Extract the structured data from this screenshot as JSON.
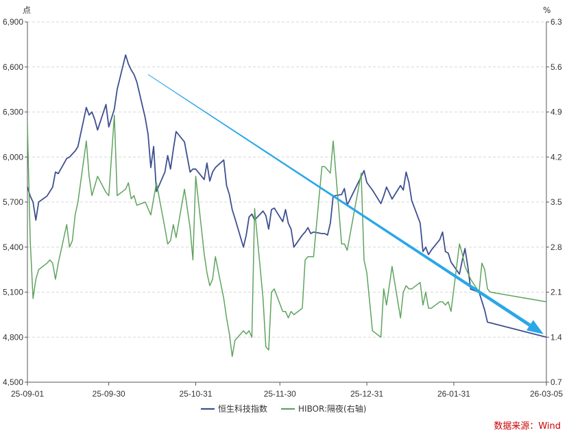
{
  "chart_data": {
    "type": "line",
    "left_unit": "点",
    "right_unit": "%",
    "x_ticks": [
      "25-09-01",
      "25-09-30",
      "25-10-31",
      "25-11-30",
      "25-12-31",
      "26-01-31",
      "26-03-05"
    ],
    "x_range": [
      "2025-09-01",
      "2026-03-05"
    ],
    "y_left": {
      "min": 4500,
      "max": 6900,
      "ticks": [
        "4,500",
        "4,800",
        "5,100",
        "5,400",
        "5,700",
        "6,000",
        "6,300",
        "6,600",
        "6,900"
      ]
    },
    "y_right": {
      "min": 0.7,
      "max": 6.3,
      "ticks": [
        "0.7",
        "1.4",
        "2.1",
        "2.8",
        "3.5",
        "4.2",
        "4.9",
        "5.6",
        "6.3"
      ]
    },
    "grid": "horizontal-dashed",
    "legend_position": "bottom-center",
    "series": [
      {
        "name": "恒生科技指数",
        "axis": "left",
        "color": "#3d4f8f",
        "points": [
          [
            "2025-09-01",
            5800
          ],
          [
            "2025-09-02",
            5740
          ],
          [
            "2025-09-03",
            5700
          ],
          [
            "2025-09-04",
            5580
          ],
          [
            "2025-09-05",
            5700
          ],
          [
            "2025-09-08",
            5740
          ],
          [
            "2025-09-09",
            5770
          ],
          [
            "2025-09-10",
            5800
          ],
          [
            "2025-09-11",
            5900
          ],
          [
            "2025-09-12",
            5890
          ],
          [
            "2025-09-15",
            5990
          ],
          [
            "2025-09-16",
            6000
          ],
          [
            "2025-09-18",
            6040
          ],
          [
            "2025-09-19",
            6070
          ],
          [
            "2025-09-22",
            6330
          ],
          [
            "2025-09-23",
            6280
          ],
          [
            "2025-09-24",
            6300
          ],
          [
            "2025-09-25",
            6250
          ],
          [
            "2025-09-26",
            6180
          ],
          [
            "2025-09-29",
            6350
          ],
          [
            "2025-09-30",
            6200
          ],
          [
            "2025-10-02",
            6320
          ],
          [
            "2025-10-03",
            6450
          ],
          [
            "2025-10-06",
            6680
          ],
          [
            "2025-10-07",
            6620
          ],
          [
            "2025-10-08",
            6580
          ],
          [
            "2025-10-09",
            6550
          ],
          [
            "2025-10-10",
            6500
          ],
          [
            "2025-10-13",
            6260
          ],
          [
            "2025-10-14",
            6150
          ],
          [
            "2025-10-15",
            5930
          ],
          [
            "2025-10-16",
            6070
          ],
          [
            "2025-10-17",
            5770
          ],
          [
            "2025-10-20",
            5900
          ],
          [
            "2025-10-21",
            6010
          ],
          [
            "2025-10-22",
            5920
          ],
          [
            "2025-10-23",
            6050
          ],
          [
            "2025-10-24",
            6170
          ],
          [
            "2025-10-27",
            6100
          ],
          [
            "2025-10-28",
            6000
          ],
          [
            "2025-10-29",
            5900
          ],
          [
            "2025-10-30",
            5920
          ],
          [
            "2025-10-31",
            5920
          ],
          [
            "2025-11-03",
            5850
          ],
          [
            "2025-11-04",
            5960
          ],
          [
            "2025-11-05",
            5840
          ],
          [
            "2025-11-06",
            5900
          ],
          [
            "2025-11-07",
            5930
          ],
          [
            "2025-11-10",
            5980
          ],
          [
            "2025-11-11",
            5810
          ],
          [
            "2025-11-12",
            5750
          ],
          [
            "2025-11-13",
            5650
          ],
          [
            "2025-11-14",
            5590
          ],
          [
            "2025-11-17",
            5400
          ],
          [
            "2025-11-18",
            5480
          ],
          [
            "2025-11-19",
            5600
          ],
          [
            "2025-11-20",
            5620
          ],
          [
            "2025-11-21",
            5580
          ],
          [
            "2025-11-24",
            5640
          ],
          [
            "2025-11-25",
            5610
          ],
          [
            "2025-11-26",
            5520
          ],
          [
            "2025-11-27",
            5650
          ],
          [
            "2025-11-28",
            5660
          ],
          [
            "2025-12-01",
            5570
          ],
          [
            "2025-12-02",
            5650
          ],
          [
            "2025-12-03",
            5560
          ],
          [
            "2025-12-04",
            5520
          ],
          [
            "2025-12-05",
            5400
          ],
          [
            "2025-12-08",
            5480
          ],
          [
            "2025-12-09",
            5500
          ],
          [
            "2025-12-10",
            5530
          ],
          [
            "2025-12-11",
            5490
          ],
          [
            "2025-12-12",
            5500
          ],
          [
            "2025-12-15",
            5490
          ],
          [
            "2025-12-16",
            5490
          ],
          [
            "2025-12-17",
            5480
          ],
          [
            "2025-12-18",
            5560
          ],
          [
            "2025-12-19",
            5740
          ],
          [
            "2025-12-22",
            5750
          ],
          [
            "2025-12-23",
            5790
          ],
          [
            "2025-12-24",
            5680
          ],
          [
            "2025-12-29",
            5870
          ],
          [
            "2025-12-30",
            5910
          ],
          [
            "2025-12-31",
            5830
          ],
          [
            "2026-01-02",
            5780
          ],
          [
            "2026-01-05",
            5690
          ],
          [
            "2026-01-06",
            5740
          ],
          [
            "2026-01-07",
            5800
          ],
          [
            "2026-01-08",
            5760
          ],
          [
            "2026-01-09",
            5720
          ],
          [
            "2026-01-12",
            5810
          ],
          [
            "2026-01-13",
            5780
          ],
          [
            "2026-01-14",
            5900
          ],
          [
            "2026-01-15",
            5830
          ],
          [
            "2026-01-16",
            5710
          ],
          [
            "2026-01-19",
            5560
          ],
          [
            "2026-01-20",
            5370
          ],
          [
            "2026-01-21",
            5400
          ],
          [
            "2026-01-22",
            5350
          ],
          [
            "2026-01-23",
            5380
          ],
          [
            "2026-01-26",
            5450
          ],
          [
            "2026-01-27",
            5500
          ],
          [
            "2026-01-28",
            5370
          ],
          [
            "2026-01-29",
            5360
          ],
          [
            "2026-01-30",
            5300
          ],
          [
            "2026-02-02",
            5220
          ],
          [
            "2026-02-03",
            5310
          ],
          [
            "2026-02-04",
            5390
          ],
          [
            "2026-02-05",
            5270
          ],
          [
            "2026-02-06",
            5120
          ],
          [
            "2026-02-09",
            5100
          ],
          [
            "2026-02-10",
            5040
          ],
          [
            "2026-02-11",
            4980
          ],
          [
            "2026-02-12",
            4900
          ],
          [
            "2026-03-05",
            4800
          ]
        ]
      },
      {
        "name": "HIBOR:隔夜(右轴)",
        "axis": "right",
        "color": "#5ea35e",
        "points": [
          [
            "2025-09-01",
            4.7
          ],
          [
            "2025-09-02",
            2.9
          ],
          [
            "2025-09-03",
            2.0
          ],
          [
            "2025-09-04",
            2.3
          ],
          [
            "2025-09-05",
            2.45
          ],
          [
            "2025-09-08",
            2.55
          ],
          [
            "2025-09-09",
            2.6
          ],
          [
            "2025-09-10",
            2.55
          ],
          [
            "2025-09-11",
            2.3
          ],
          [
            "2025-09-12",
            2.55
          ],
          [
            "2025-09-15",
            3.15
          ],
          [
            "2025-09-16",
            2.8
          ],
          [
            "2025-09-17",
            2.9
          ],
          [
            "2025-09-18",
            3.3
          ],
          [
            "2025-09-19",
            3.5
          ],
          [
            "2025-09-22",
            4.45
          ],
          [
            "2025-09-23",
            3.9
          ],
          [
            "2025-09-24",
            3.6
          ],
          [
            "2025-09-25",
            3.75
          ],
          [
            "2025-09-26",
            3.9
          ],
          [
            "2025-09-29",
            3.65
          ],
          [
            "2025-09-30",
            3.6
          ],
          [
            "2025-10-02",
            4.85
          ],
          [
            "2025-10-03",
            3.6
          ],
          [
            "2025-10-06",
            3.7
          ],
          [
            "2025-10-07",
            3.8
          ],
          [
            "2025-10-08",
            3.55
          ],
          [
            "2025-10-09",
            3.6
          ],
          [
            "2025-10-10",
            3.45
          ],
          [
            "2025-10-13",
            3.5
          ],
          [
            "2025-10-14",
            3.4
          ],
          [
            "2025-10-15",
            3.3
          ],
          [
            "2025-10-16",
            3.55
          ],
          [
            "2025-10-17",
            3.8
          ],
          [
            "2025-10-20",
            3.1
          ],
          [
            "2025-10-21",
            2.85
          ],
          [
            "2025-10-22",
            2.9
          ],
          [
            "2025-10-23",
            3.15
          ],
          [
            "2025-10-24",
            2.95
          ],
          [
            "2025-10-27",
            3.7
          ],
          [
            "2025-10-28",
            3.4
          ],
          [
            "2025-10-29",
            3.1
          ],
          [
            "2025-10-30",
            2.6
          ],
          [
            "2025-10-31",
            3.9
          ],
          [
            "2025-11-03",
            2.7
          ],
          [
            "2025-11-04",
            2.4
          ],
          [
            "2025-11-05",
            2.2
          ],
          [
            "2025-11-06",
            2.3
          ],
          [
            "2025-11-07",
            2.65
          ],
          [
            "2025-11-10",
            2.0
          ],
          [
            "2025-11-11",
            1.7
          ],
          [
            "2025-11-12",
            1.45
          ],
          [
            "2025-11-13",
            1.1
          ],
          [
            "2025-11-14",
            1.35
          ],
          [
            "2025-11-17",
            1.5
          ],
          [
            "2025-11-18",
            1.45
          ],
          [
            "2025-11-19",
            1.5
          ],
          [
            "2025-11-20",
            1.4
          ],
          [
            "2025-11-21",
            3.4
          ],
          [
            "2025-11-24",
            2.0
          ],
          [
            "2025-11-25",
            1.25
          ],
          [
            "2025-11-26",
            1.2
          ],
          [
            "2025-11-27",
            2.1
          ],
          [
            "2025-11-28",
            2.15
          ],
          [
            "2025-12-01",
            1.8
          ],
          [
            "2025-12-02",
            1.8
          ],
          [
            "2025-12-03",
            1.7
          ],
          [
            "2025-12-04",
            1.8
          ],
          [
            "2025-12-05",
            1.75
          ],
          [
            "2025-12-08",
            1.85
          ],
          [
            "2025-12-09",
            2.6
          ],
          [
            "2025-12-10",
            2.65
          ],
          [
            "2025-12-11",
            2.65
          ],
          [
            "2025-12-12",
            2.65
          ],
          [
            "2025-12-15",
            4.05
          ],
          [
            "2025-12-16",
            4.05
          ],
          [
            "2025-12-17",
            4.0
          ],
          [
            "2025-12-18",
            3.95
          ],
          [
            "2025-12-19",
            4.45
          ],
          [
            "2025-12-22",
            2.85
          ],
          [
            "2025-12-23",
            2.85
          ],
          [
            "2025-12-24",
            2.75
          ],
          [
            "2025-12-29",
            3.95
          ],
          [
            "2025-12-30",
            2.6
          ],
          [
            "2025-12-31",
            2.4
          ],
          [
            "2026-01-02",
            1.5
          ],
          [
            "2026-01-05",
            1.4
          ],
          [
            "2026-01-06",
            2.15
          ],
          [
            "2026-01-07",
            1.9
          ],
          [
            "2026-01-08",
            2.2
          ],
          [
            "2026-01-09",
            2.5
          ],
          [
            "2026-01-12",
            1.7
          ],
          [
            "2026-01-13",
            2.1
          ],
          [
            "2026-01-14",
            2.2
          ],
          [
            "2026-01-15",
            2.15
          ],
          [
            "2026-01-16",
            2.15
          ],
          [
            "2026-01-19",
            2.25
          ],
          [
            "2026-01-20",
            1.9
          ],
          [
            "2026-01-21",
            2.1
          ],
          [
            "2026-01-22",
            1.85
          ],
          [
            "2026-01-23",
            1.85
          ],
          [
            "2026-01-26",
            1.95
          ],
          [
            "2026-01-27",
            1.95
          ],
          [
            "2026-01-28",
            1.9
          ],
          [
            "2026-01-29",
            1.95
          ],
          [
            "2026-01-30",
            1.8
          ],
          [
            "2026-02-02",
            2.85
          ],
          [
            "2026-02-03",
            2.7
          ],
          [
            "2026-02-04",
            2.5
          ],
          [
            "2026-02-05",
            2.4
          ],
          [
            "2026-02-06",
            2.3
          ],
          [
            "2026-02-09",
            2.1
          ],
          [
            "2026-02-10",
            2.55
          ],
          [
            "2026-02-11",
            2.45
          ],
          [
            "2026-02-12",
            2.15
          ],
          [
            "2026-02-13",
            2.1
          ],
          [
            "2026-03-05",
            1.95
          ]
        ]
      }
    ],
    "annotation": {
      "type": "trend-arrow",
      "color": "#2aa7e8",
      "from": [
        "2025-10-14",
        6550
      ],
      "to": [
        "2026-03-04",
        4820
      ]
    }
  },
  "source_label": "数据来源：Wind"
}
